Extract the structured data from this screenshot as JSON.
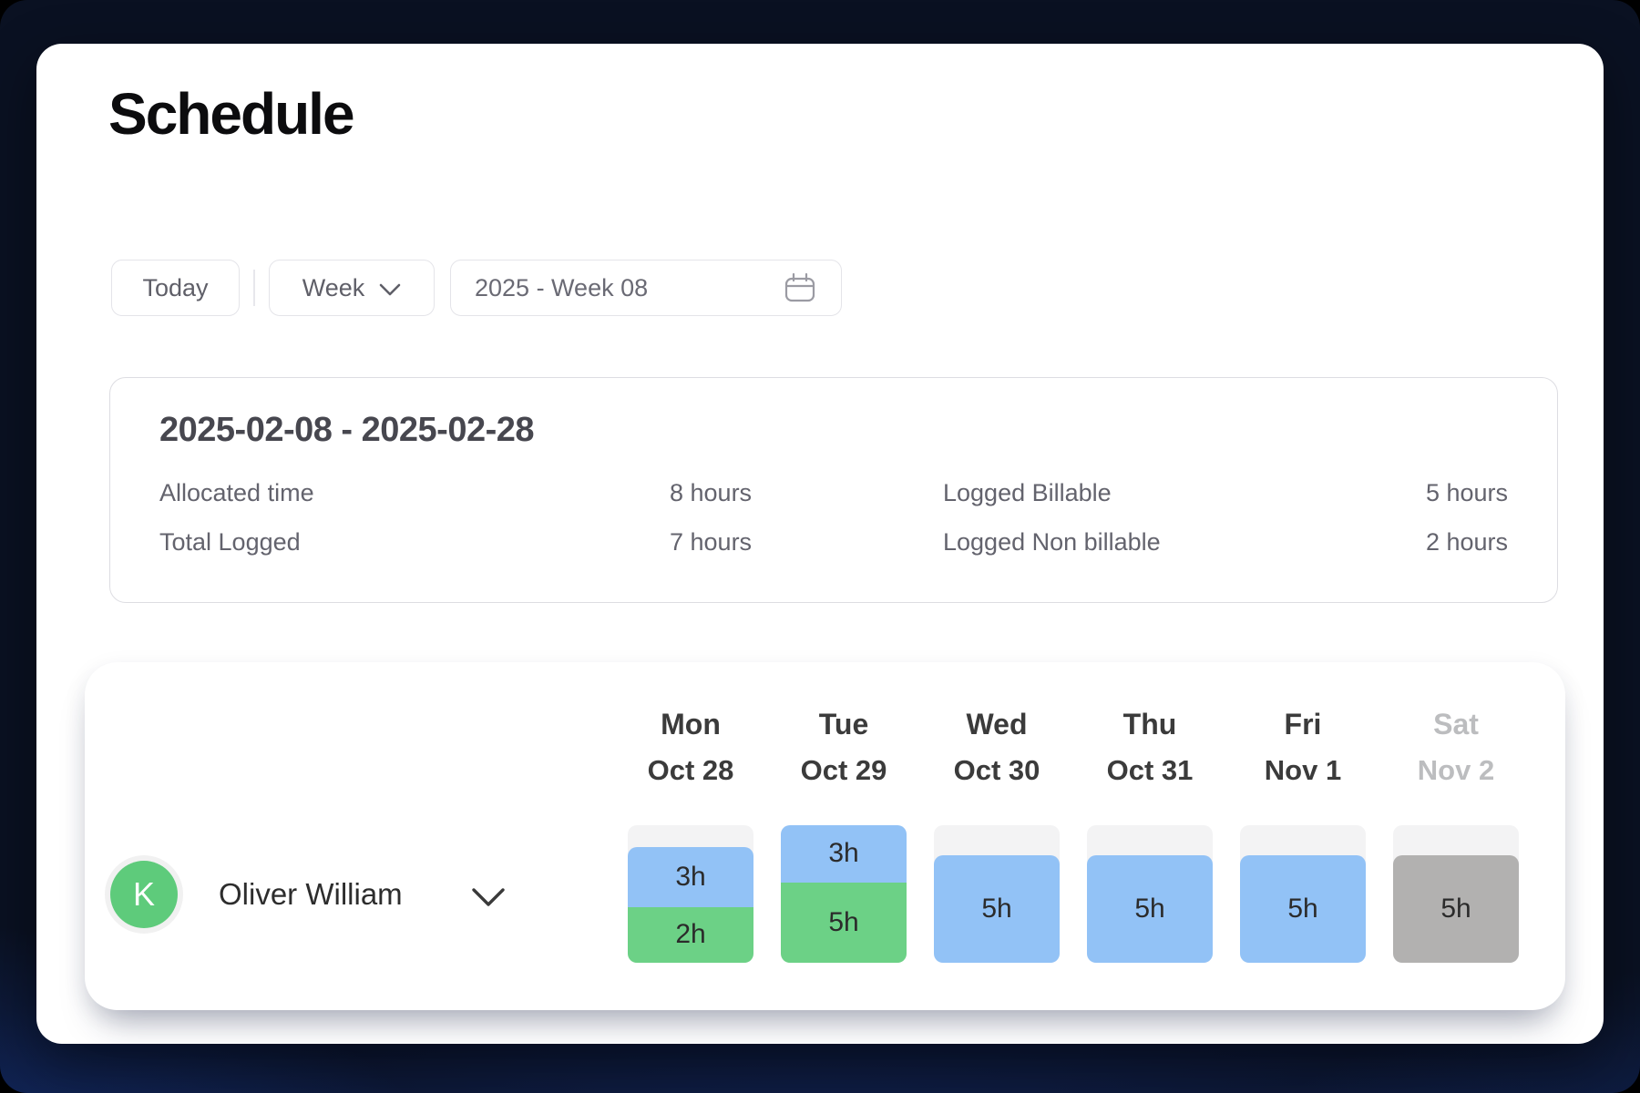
{
  "page": {
    "title": "Schedule"
  },
  "toolbar": {
    "today_button": "Today",
    "view_select": {
      "value": "Week"
    },
    "period_picker": {
      "value": "2025 - Week 08"
    }
  },
  "summary": {
    "date_range": "2025-02-08 - 2025-02-28",
    "stats": [
      {
        "label": "Allocated time",
        "value": "8 hours"
      },
      {
        "label": "Total Logged",
        "value": "7 hours"
      },
      {
        "label": "Logged Billable",
        "value": "5 hours"
      },
      {
        "label": "Logged Non billable",
        "value": "2 hours"
      }
    ]
  },
  "schedule": {
    "days": [
      {
        "name": "Mon",
        "date": "Oct 28",
        "muted": false
      },
      {
        "name": "Tue",
        "date": "Oct 29",
        "muted": false
      },
      {
        "name": "Wed",
        "date": "Oct 30",
        "muted": false
      },
      {
        "name": "Thu",
        "date": "Oct 31",
        "muted": false
      },
      {
        "name": "Fri",
        "date": "Nov 1",
        "muted": false
      },
      {
        "name": "Sat",
        "date": "Nov 2",
        "muted": true
      }
    ],
    "rows": [
      {
        "member": {
          "initial": "K",
          "name": "Oliver William"
        },
        "cells": [
          {
            "day": "Mon",
            "segments": [
              {
                "kind": "empty",
                "pct": 28.5
              },
              {
                "kind": "scheduled",
                "label": "3h",
                "hours": 3,
                "pct": 38.5
              },
              {
                "kind": "logged",
                "label": "2h",
                "hours": 2,
                "pct": 33
              }
            ]
          },
          {
            "day": "Tue",
            "segments": [
              {
                "kind": "scheduled",
                "label": "3h",
                "hours": 3,
                "pct": 34.5
              },
              {
                "kind": "logged",
                "label": "5h",
                "hours": 5,
                "pct": 65.5
              }
            ]
          },
          {
            "day": "Wed",
            "segments": [
              {
                "kind": "empty",
                "pct": 28.5
              },
              {
                "kind": "scheduled",
                "label": "5h",
                "hours": 5,
                "pct": 71.5
              }
            ]
          },
          {
            "day": "Thu",
            "segments": [
              {
                "kind": "empty",
                "pct": 28.5
              },
              {
                "kind": "scheduled",
                "label": "5h",
                "hours": 5,
                "pct": 71.5
              }
            ]
          },
          {
            "day": "Fri",
            "segments": [
              {
                "kind": "empty",
                "pct": 28.5
              },
              {
                "kind": "scheduled",
                "label": "5h",
                "hours": 5,
                "pct": 71.5
              }
            ]
          },
          {
            "day": "Sat",
            "segments": [
              {
                "kind": "empty",
                "pct": 28.5
              },
              {
                "kind": "weekend",
                "label": "5h",
                "hours": 5,
                "pct": 71.5
              }
            ]
          }
        ]
      }
    ]
  },
  "colors": {
    "scheduled": "#92c2f6",
    "logged": "#6cd186",
    "weekend": "#b2b1b0",
    "track": "#f3f3f4",
    "avatar": "#5ecb7b",
    "background": "#0a1122",
    "glow": "#2052d2"
  }
}
